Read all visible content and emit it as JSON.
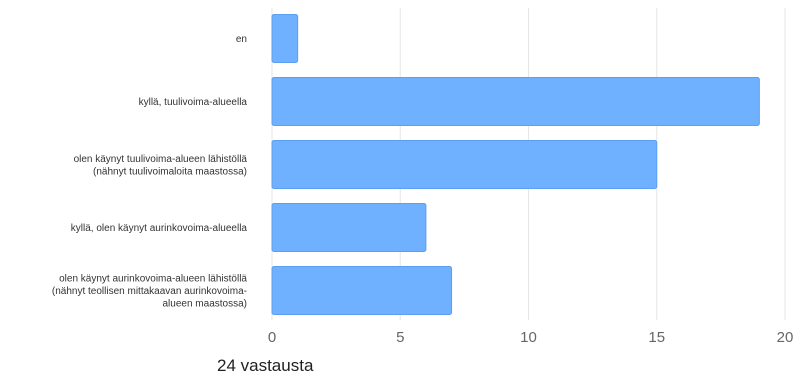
{
  "chart_data": {
    "type": "bar",
    "orientation": "horizontal",
    "categories": [
      [
        "en"
      ],
      [
        "kyllä, tuulivoima-alueella"
      ],
      [
        "olen käynyt tuulivoima-alueen lähistöllä",
        "(nähnyt tuulivoimaloita maastossa)"
      ],
      [
        "kyllä, olen käynyt aurinkovoima-alueella"
      ],
      [
        "olen käynyt aurinkovoima-alueen lähistöllä",
        "(nähnyt teollisen mittakaavan aurinkovoima-",
        "alueen maastossa)"
      ]
    ],
    "values": [
      1,
      19,
      15,
      6,
      7
    ],
    "xlim": [
      0,
      20
    ],
    "xticks": [
      0,
      5,
      10,
      15,
      20
    ],
    "grid": true,
    "bar_color": "#6fb0ff",
    "bar_stroke": "#5b9ff2",
    "grid_color": "#e6e6e6"
  },
  "footer": {
    "responses": "24 vastausta"
  }
}
